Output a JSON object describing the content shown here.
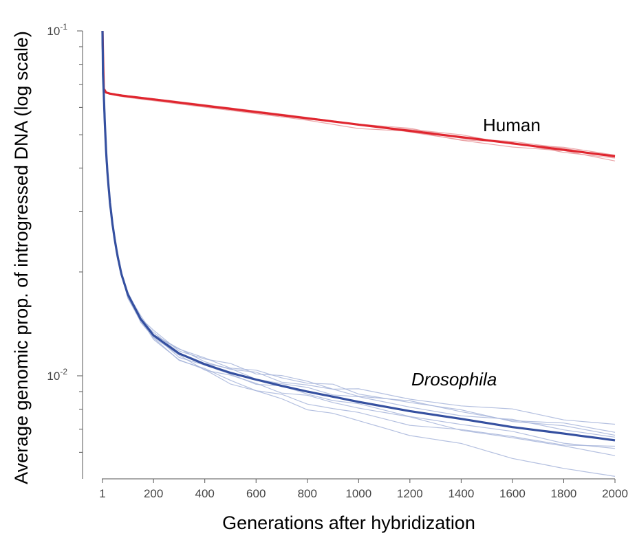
{
  "chart_data": {
    "type": "line",
    "xlabel": "Generations after hybridization",
    "ylabel": "Average genomic prop. of introgressed DNA (log scale)",
    "x_scale": "linear",
    "y_scale": "log",
    "xlim": [
      1,
      2000
    ],
    "ylim": [
      0.0055,
      0.1
    ],
    "grid": false,
    "x_ticks": [
      1,
      200,
      400,
      600,
      800,
      1000,
      1200,
      1400,
      1600,
      1800,
      2000
    ],
    "x_tick_labels": [
      "1",
      "200",
      "400",
      "600",
      "800",
      "1000",
      "1200",
      "1400",
      "1600",
      "1800",
      "2000"
    ],
    "y_major_ticks": [
      {
        "value": 0.1,
        "base": "10",
        "exp": "-1"
      },
      {
        "value": 0.01,
        "base": "10",
        "exp": "-2"
      }
    ],
    "y_minor_ticks": [
      0.006,
      0.007,
      0.008,
      0.009,
      0.02,
      0.03,
      0.04,
      0.05,
      0.06,
      0.07,
      0.08,
      0.09
    ],
    "annotations": [
      {
        "text": "Human",
        "italic": false,
        "color": "#000000"
      },
      {
        "text": "Drosophila",
        "italic": true,
        "color": "#000000"
      }
    ],
    "series": [
      {
        "name": "Human",
        "color": "#e0262f",
        "faint_color": "#e8969a",
        "x": [
          1,
          6,
          15,
          30,
          60,
          100,
          200,
          400,
          600,
          800,
          1000,
          1200,
          1400,
          1600,
          1800,
          2000
        ],
        "values": [
          0.1,
          0.068,
          0.0663,
          0.0658,
          0.0652,
          0.0646,
          0.0633,
          0.0607,
          0.0582,
          0.0558,
          0.0535,
          0.0513,
          0.0492,
          0.0472,
          0.0452,
          0.0433
        ],
        "replicates": [
          {
            "offsets": [
              0,
              0.002,
              0.003,
              0.003,
              0.004,
              0.004,
              0.004,
              0.005,
              0.005,
              0.005,
              0.006,
              0.006,
              0.006,
              0.006,
              0.006,
              0.006
            ]
          },
          {
            "offsets": [
              0,
              -0.002,
              -0.003,
              -0.004,
              -0.005,
              -0.006,
              -0.007,
              -0.008,
              -0.009,
              -0.01,
              -0.011,
              -0.012,
              -0.013,
              -0.014,
              -0.015,
              -0.016
            ]
          },
          {
            "offsets": [
              0,
              0.001,
              0.001,
              0.0015,
              0.002,
              0.002,
              0.003,
              0.003,
              0.004,
              0.004,
              0.004,
              0.005,
              0.005,
              0.005,
              0.005,
              0.005
            ]
          },
          {
            "offsets": [
              0,
              -0.001,
              -0.0015,
              -0.002,
              -0.002,
              -0.003,
              -0.003,
              -0.004,
              -0.004,
              -0.005,
              -0.005,
              -0.006,
              -0.006,
              -0.006,
              -0.007,
              -0.007
            ]
          }
        ]
      },
      {
        "name": "Drosophila",
        "color": "#3550a0",
        "faint_color": "#a7b5db",
        "x": [
          1,
          3,
          6,
          10,
          15,
          20,
          30,
          40,
          50,
          60,
          75,
          100,
          150,
          200,
          300,
          400,
          500,
          600,
          700,
          800,
          900,
          1000,
          1200,
          1400,
          1600,
          1800,
          2000
        ],
        "values": [
          0.1,
          0.075,
          0.0655,
          0.054,
          0.045,
          0.039,
          0.0318,
          0.0275,
          0.0245,
          0.0222,
          0.0197,
          0.0172,
          0.0146,
          0.0131,
          0.0116,
          0.0108,
          0.0102,
          0.00975,
          0.00935,
          0.009,
          0.0087,
          0.0084,
          0.0079,
          0.0075,
          0.0071,
          0.0068,
          0.0065
        ],
        "replicates": [
          {
            "offsets": [
              0,
              0,
              0,
              0,
              0,
              0,
              0,
              0,
              0,
              0,
              0.004,
              0.008,
              0.012,
              0.016,
              0.02,
              0.03,
              0.04,
              0.04,
              0.05,
              0.05,
              0.05,
              0.06,
              0.065,
              0.075,
              0.085,
              0.08,
              0.085
            ]
          },
          {
            "offsets": [
              0,
              0,
              0,
              0,
              0,
              0,
              0,
              0,
              0,
              0,
              -0.004,
              -0.01,
              -0.015,
              -0.02,
              -0.025,
              -0.03,
              -0.04,
              -0.05,
              -0.055,
              -0.06,
              -0.06,
              -0.065,
              -0.065,
              -0.06,
              -0.055,
              -0.05,
              -0.04
            ]
          },
          {
            "offsets": [
              0,
              0,
              0,
              0,
              0,
              0,
              0,
              0,
              0,
              0,
              -0.003,
              -0.008,
              -0.012,
              -0.018,
              -0.028,
              -0.038,
              -0.05,
              -0.06,
              -0.075,
              -0.085,
              -0.095,
              -0.1,
              -0.12,
              -0.14,
              -0.16,
              -0.18,
              -0.2
            ]
          },
          {
            "offsets": [
              0,
              0,
              0,
              0,
              0,
              0,
              0,
              0,
              0,
              0,
              0.003,
              0.006,
              0.01,
              0.014,
              0.018,
              0.03,
              0.035,
              0.04,
              0.045,
              0.05,
              0.055,
              0.05,
              0.045,
              0.04,
              0.04,
              0.035,
              0.025
            ]
          },
          {
            "offsets": [
              0,
              0,
              0,
              0,
              0,
              0,
              0,
              0,
              0,
              0,
              0.002,
              0.004,
              0.008,
              0.012,
              0.015,
              0.02,
              0.02,
              0.03,
              0.03,
              0.03,
              0.035,
              0.04,
              0.045,
              0.04,
              0.04,
              0.045,
              0.05
            ]
          },
          {
            "offsets": [
              0,
              0,
              0,
              0,
              0,
              0,
              0,
              0,
              0,
              0,
              -0.002,
              -0.005,
              -0.008,
              -0.012,
              -0.015,
              -0.02,
              -0.02,
              -0.02,
              -0.03,
              -0.03,
              -0.025,
              -0.03,
              -0.04,
              -0.05,
              -0.06,
              -0.07,
              -0.07
            ]
          },
          {
            "offsets": [
              0,
              0,
              0,
              0,
              0,
              0,
              0,
              0,
              0,
              0,
              0.001,
              0.002,
              0.004,
              0.006,
              0.008,
              0.01,
              0.012,
              0.012,
              0.01,
              0.015,
              0.02,
              0.02,
              0.02,
              0.025,
              0.03,
              0.025,
              0.02
            ]
          },
          {
            "offsets": [
              0,
              0,
              0,
              0,
              0,
              0,
              0,
              0,
              0,
              0,
              -0.001,
              -0.002,
              -0.004,
              -0.006,
              -0.01,
              -0.01,
              -0.01,
              -0.015,
              -0.01,
              -0.01,
              -0.015,
              -0.02,
              -0.02,
              -0.03,
              -0.03,
              -0.04,
              -0.05
            ]
          }
        ]
      }
    ]
  }
}
